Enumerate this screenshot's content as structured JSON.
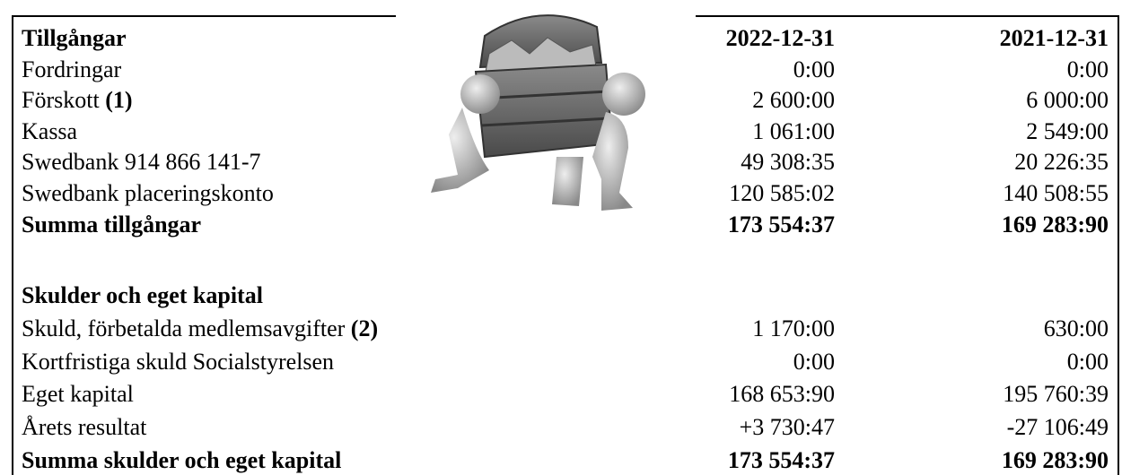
{
  "sections": [
    {
      "heading": "Tillgångar",
      "columns": [
        "2022-12-31",
        "2021-12-31"
      ],
      "rows": [
        {
          "label": "Fordringar",
          "values": [
            "0:00",
            "0:00"
          ]
        },
        {
          "label": "Förskott",
          "note": "(1)",
          "values": [
            "2 600:00",
            "6 000:00"
          ]
        },
        {
          "label": "Kassa",
          "values": [
            "1 061:00",
            "2 549:00"
          ]
        },
        {
          "label": "Swedbank 914 866 141-7",
          "values": [
            "49 308:35",
            "20 226:35"
          ]
        },
        {
          "label": "Swedbank placeringskonto",
          "values": [
            "120 585:02",
            "140 508:55"
          ]
        }
      ],
      "total": {
        "label": "Summa tillgångar",
        "values": [
          "173 554:37",
          "169 283:90"
        ]
      }
    },
    {
      "heading": "Skulder och eget kapital",
      "rows": [
        {
          "label": "Skuld, förbetalda medlemsavgifter",
          "note": "(2)",
          "values": [
            "1 170:00",
            "630:00"
          ]
        },
        {
          "label": "Kortfristiga skuld Socialstyrelsen",
          "values": [
            "0:00",
            "0:00"
          ]
        },
        {
          "label": "Eget kapital",
          "values": [
            "168 653:90",
            "195 760:39"
          ]
        },
        {
          "label": "Årets resultat",
          "values": [
            "+3 730:47",
            "-27 106:49"
          ]
        }
      ],
      "total": {
        "label": "Summa skulder och eget kapital",
        "values": [
          "173 554:37",
          "169 283:90"
        ]
      }
    }
  ]
}
